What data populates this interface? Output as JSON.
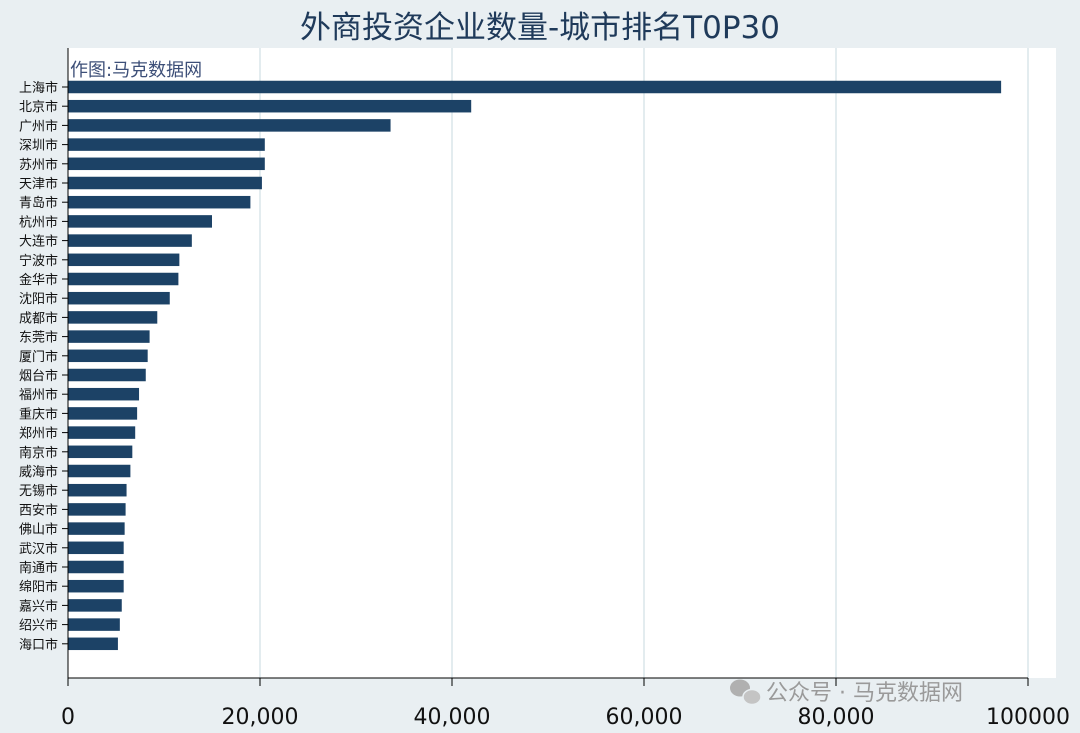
{
  "chart_data": {
    "type": "bar",
    "orientation": "horizontal",
    "title": "外商投资企业数量-城市排名T0P30",
    "note": "作图:马克数据网",
    "watermark": "公众号 · 马克数据网",
    "xlabel": "",
    "ylabel": "",
    "xlim": [
      0,
      100000
    ],
    "xticks": [
      0,
      20000,
      40000,
      60000,
      80000,
      100000
    ],
    "xtick_labels": [
      "0",
      "20,000",
      "40,000",
      "60,000",
      "80,000",
      "100000"
    ],
    "grid": true,
    "bar_color": "#1c4266",
    "categories": [
      "上海市",
      "北京市",
      "广州市",
      "深圳市",
      "苏州市",
      "天津市",
      "青岛市",
      "杭州市",
      "大连市",
      "宁波市",
      "金华市",
      "沈阳市",
      "成都市",
      "东莞市",
      "厦门市",
      "烟台市",
      "福州市",
      "重庆市",
      "郑州市",
      "南京市",
      "威海市",
      "无锡市",
      "西安市",
      "佛山市",
      "武汉市",
      "南通市",
      "绵阳市",
      "嘉兴市",
      "绍兴市",
      "海口市"
    ],
    "values": [
      97200,
      42000,
      33600,
      20500,
      20500,
      20200,
      19000,
      15000,
      12900,
      11600,
      11500,
      10600,
      9300,
      8500,
      8300,
      8100,
      7400,
      7200,
      7000,
      6700,
      6500,
      6100,
      6000,
      5900,
      5800,
      5800,
      5800,
      5600,
      5400,
      5200
    ]
  }
}
